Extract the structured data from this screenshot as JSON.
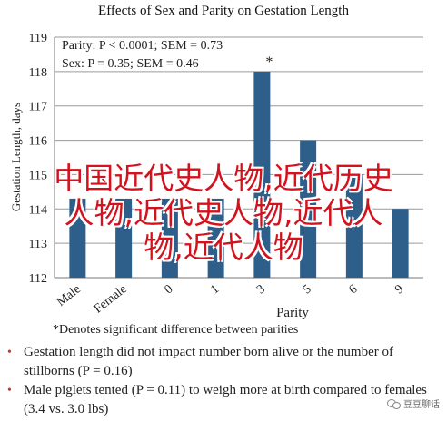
{
  "chart_data": {
    "type": "bar",
    "title": "Effects of Sex and Parity on Gestation Length",
    "ylabel": "Gestation Length, days",
    "xlabel": "Parity",
    "categories": [
      "Male",
      "Female",
      "0",
      "1",
      "3",
      "5",
      "6",
      "9"
    ],
    "values": [
      114.3,
      114.3,
      114.3,
      114.3,
      118.0,
      116.0,
      115.0,
      114.0
    ],
    "annotations": [
      "",
      "",
      "",
      "",
      "*",
      "",
      "",
      ""
    ],
    "ylim": [
      112,
      119
    ],
    "yticks": [
      "112",
      "113",
      "114",
      "115",
      "116",
      "117",
      "118",
      "119"
    ],
    "grid": true,
    "bar_color": "#2e5f8a"
  },
  "stats": [
    "Parity: P < 0.0001; SEM = 0.73",
    "Sex: P = 0.35; SEM = 0.46"
  ],
  "footnote": "*Denotes significant difference between parities",
  "bullets": [
    "Gestation length did not impact number born alive or the number of stillborns (P = 0.16)",
    "Male piglets tented (P = 0.11) to weigh more at birth compared to females (3.4 vs. 3.0 lbs)"
  ],
  "overlay_text": [
    "中国近代史人物,近代历史",
    "人物,近代史人物,近代人",
    "物,近代人物"
  ],
  "watermark": "豆豆聊话"
}
